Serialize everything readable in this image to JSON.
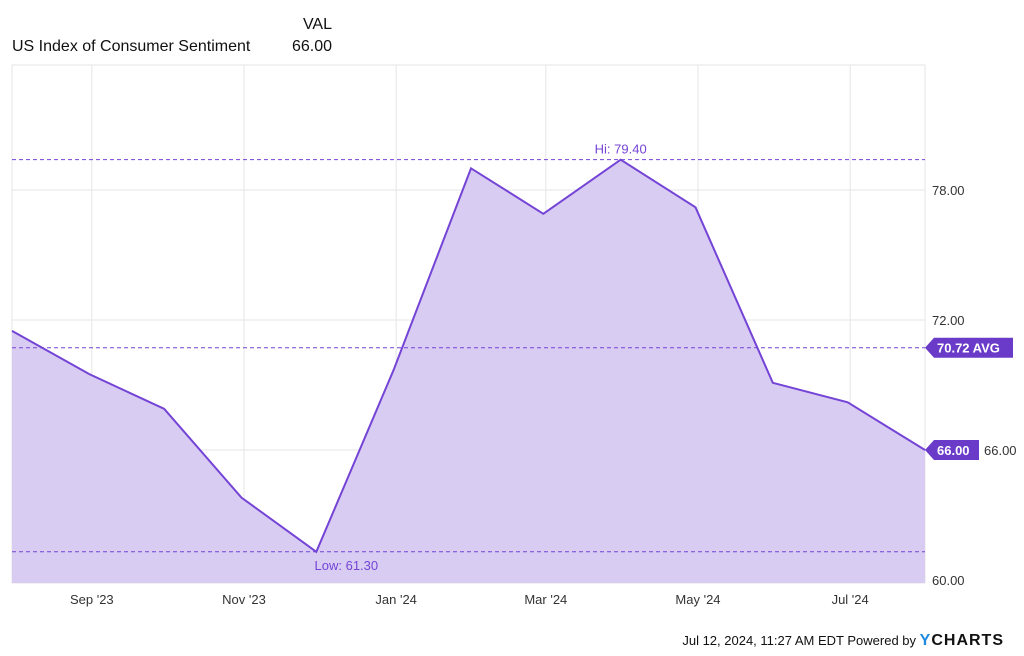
{
  "legend": {
    "header": "VAL",
    "series_name": "US Index of Consumer Sentiment",
    "series_value": "66.00"
  },
  "footer": {
    "timestamp": "Jul 12, 2024, 11:27 AM EDT",
    "powered_by": "Powered by",
    "logo_y": "Y",
    "logo_rest": "CHARTS"
  },
  "colors": {
    "line": "#7444d6",
    "fill": "#d9ccf2",
    "label_bg": "#6a3bc8",
    "grid": "#e6e6e6"
  },
  "chart_data": {
    "type": "area",
    "title": "",
    "xlabel": "",
    "ylabel": "",
    "grid": true,
    "legend_placement": "top-left",
    "xlim": [
      "2023-07-31",
      "2024-07-31"
    ],
    "ylim": [
      59.86,
      83.77
    ],
    "x_ticks": [
      {
        "date": "2023-09-01",
        "label": "Sep '23"
      },
      {
        "date": "2023-11-01",
        "label": "Nov '23"
      },
      {
        "date": "2024-01-01",
        "label": "Jan '24"
      },
      {
        "date": "2024-03-01",
        "label": "Mar '24"
      },
      {
        "date": "2024-05-01",
        "label": "May '24"
      },
      {
        "date": "2024-07-01",
        "label": "Jul '24"
      }
    ],
    "y_ticks": [
      60,
      66,
      72,
      78
    ],
    "y_tick_labels": [
      "60.00",
      "66.00",
      "72.00",
      "78.00"
    ],
    "series": [
      {
        "name": "US Index of Consumer Sentiment",
        "x": [
          "2023-07-31",
          "2023-08-31",
          "2023-09-30",
          "2023-10-31",
          "2023-11-30",
          "2023-12-31",
          "2024-01-31",
          "2024-02-29",
          "2024-03-31",
          "2024-04-30",
          "2024-05-31",
          "2024-06-30",
          "2024-07-31"
        ],
        "y": [
          71.5,
          69.5,
          67.9,
          63.8,
          61.3,
          69.7,
          79.0,
          76.9,
          79.4,
          77.2,
          69.1,
          68.2,
          66.0
        ]
      }
    ],
    "annotations": {
      "high": {
        "value": 79.4,
        "label": "Hi: 79.40",
        "date": "2024-03-31"
      },
      "low": {
        "value": 61.3,
        "label": "Low: 61.30",
        "date": "2023-11-30"
      },
      "average": {
        "value": 70.72,
        "label": "70.72 AVG"
      },
      "last": {
        "value": 66.0,
        "label": "66.00"
      }
    }
  }
}
